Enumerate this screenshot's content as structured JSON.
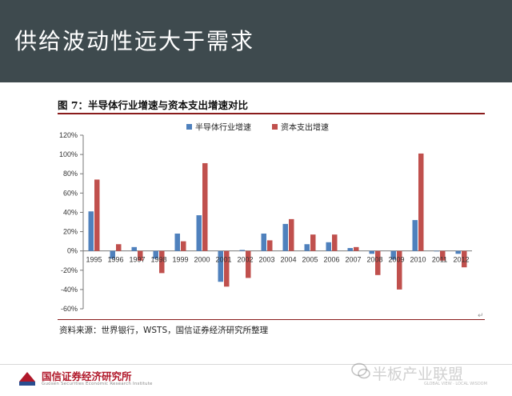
{
  "slide": {
    "title": "供给波动性远大于需求",
    "figure_caption": "图 7：半导体行业增速与资本支出增速对比",
    "source": "资料来源：世界银行，WSTS，国信证券经济研究所整理",
    "logo_text": "国信证券经济研究所",
    "logo_subtext": "Guosen Securities Economic Research Institute",
    "watermark": "半板产业联盟",
    "watermark_subtext": "GLOBAL VIEW · LOCAL WISDOM"
  },
  "colors": {
    "header_bg": "#3e4a4e",
    "series_semiconductor": "#4f81bd",
    "series_capex": "#c0504d",
    "accent_rule": "#8a1c1c"
  },
  "chart_data": {
    "type": "bar",
    "title": "",
    "xlabel": "",
    "ylabel": "",
    "ylim": [
      -60,
      120
    ],
    "yticks": [
      "120%",
      "100%",
      "80%",
      "60%",
      "40%",
      "20%",
      "0%",
      "-20%",
      "-40%",
      "-60%"
    ],
    "ytick_values": [
      120,
      100,
      80,
      60,
      40,
      20,
      0,
      -20,
      -40,
      -60
    ],
    "grid": false,
    "legend_position": "top",
    "categories": [
      "1995",
      "1996",
      "1997",
      "1998",
      "1999",
      "2000",
      "2001",
      "2002",
      "2003",
      "2004",
      "2005",
      "2006",
      "2007",
      "2008",
      "2009",
      "2010",
      "2011",
      "2012"
    ],
    "series": [
      {
        "name": "半导体行业增速",
        "color": "#4f81bd",
        "values": [
          41,
          -8,
          4,
          -8,
          18,
          37,
          -32,
          1,
          18,
          28,
          7,
          9,
          3,
          -3,
          -9,
          32,
          0,
          -3
        ]
      },
      {
        "name": "资本支出增速",
        "color": "#c0504d",
        "values": [
          74,
          7,
          -10,
          -23,
          10,
          91,
          -37,
          -28,
          11,
          33,
          17,
          17,
          4,
          -25,
          -40,
          101,
          -10,
          -17
        ]
      }
    ]
  }
}
